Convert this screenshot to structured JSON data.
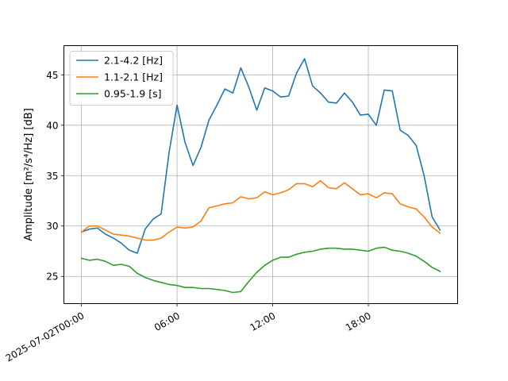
{
  "chart_data": {
    "type": "line",
    "ylabel_text": "Amplitude [m²/s⁴/Hz] [dB]",
    "xlabel": "",
    "title": "",
    "x_ticks": [
      {
        "hours": 0,
        "label": "2025-07-02T00:00"
      },
      {
        "hours": 6,
        "label": "06:00"
      },
      {
        "hours": 12,
        "label": "12:00"
      },
      {
        "hours": 18,
        "label": "18:00"
      }
    ],
    "xlim_hours": [
      -1.1,
      23.6
    ],
    "ylim": [
      22.3,
      47.9
    ],
    "y_ticks": [
      25,
      30,
      35,
      40,
      45
    ],
    "grid": true,
    "legend_position": "top-left",
    "x_hours": [
      0,
      0.5,
      1,
      1.5,
      2,
      2.5,
      3,
      3.5,
      4,
      4.5,
      5,
      5.5,
      6,
      6.5,
      7,
      7.5,
      8,
      8.5,
      9,
      9.5,
      10,
      10.5,
      11,
      11.5,
      12,
      12.5,
      13,
      13.5,
      14,
      14.5,
      15,
      15.5,
      16,
      16.5,
      17,
      17.5,
      18,
      18.5,
      19,
      19.5,
      20,
      20.5,
      21,
      21.5,
      22,
      22.5
    ],
    "series": [
      {
        "name": "2.1-4.2 [Hz]",
        "color": "#1f77b4",
        "values": [
          29.4,
          29.7,
          29.8,
          29.2,
          28.8,
          28.3,
          27.6,
          27.3,
          29.7,
          30.7,
          31.2,
          37.3,
          42.0,
          38.3,
          36.0,
          37.8,
          40.5,
          42.0,
          43.6,
          43.2,
          45.7,
          43.8,
          41.5,
          43.7,
          43.4,
          42.8,
          42.9,
          45.2,
          46.6,
          43.9,
          43.2,
          42.3,
          42.2,
          43.2,
          42.3,
          41.0,
          41.1,
          40.0,
          43.5,
          43.4,
          39.5,
          39.0,
          38.0,
          35.0,
          30.9,
          29.6
        ]
      },
      {
        "name": "1.1-2.1 [Hz]",
        "color": "#ff7f0e",
        "values": [
          29.4,
          30.0,
          30.0,
          29.6,
          29.2,
          29.1,
          29.0,
          28.8,
          28.6,
          28.6,
          28.8,
          29.4,
          29.9,
          29.8,
          29.9,
          30.5,
          31.8,
          32.0,
          32.2,
          32.3,
          32.9,
          32.7,
          32.8,
          33.4,
          33.1,
          33.3,
          33.6,
          34.2,
          34.2,
          33.9,
          34.5,
          33.8,
          33.7,
          34.3,
          33.7,
          33.1,
          33.2,
          32.8,
          33.3,
          33.2,
          32.2,
          31.9,
          31.7,
          30.9,
          29.9,
          29.3
        ]
      },
      {
        "name": "0.95-1.9 [s]",
        "color": "#2ca02c",
        "values": [
          26.8,
          26.6,
          26.7,
          26.5,
          26.1,
          26.2,
          26.0,
          25.3,
          24.9,
          24.6,
          24.4,
          24.2,
          24.1,
          23.9,
          23.9,
          23.8,
          23.8,
          23.7,
          23.6,
          23.4,
          23.5,
          24.5,
          25.4,
          26.1,
          26.6,
          26.9,
          26.9,
          27.2,
          27.4,
          27.5,
          27.7,
          27.8,
          27.8,
          27.7,
          27.7,
          27.6,
          27.5,
          27.8,
          27.9,
          27.6,
          27.5,
          27.3,
          27.0,
          26.5,
          25.9,
          25.5
        ]
      }
    ]
  }
}
